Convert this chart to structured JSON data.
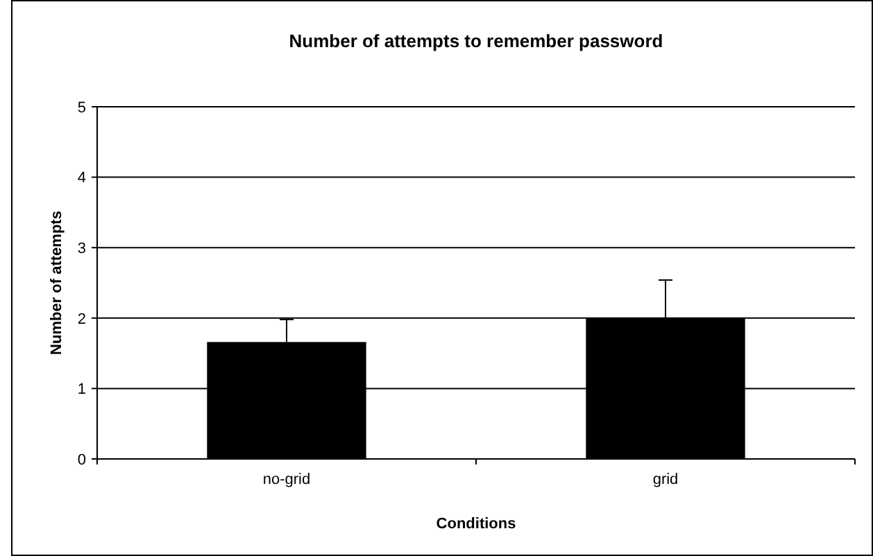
{
  "chart_data": {
    "type": "bar",
    "title": "Number of attempts to remember password",
    "xlabel": "Conditions",
    "ylabel": "Number of attempts",
    "categories": [
      "no-grid",
      "grid"
    ],
    "values": [
      1.66,
      2
    ],
    "errors": [
      [
        1.66,
        1.98
      ],
      [
        2,
        2.54
      ]
    ],
    "color": "#000000",
    "ylim": [
      0,
      5
    ],
    "yticks": [
      0,
      1,
      2,
      3,
      4,
      5
    ],
    "grid": "y"
  }
}
